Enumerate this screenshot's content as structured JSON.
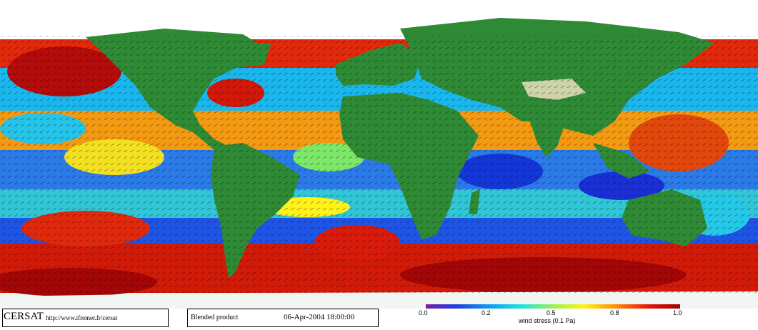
{
  "map": {
    "title": "",
    "date": "06-Apr-2004 18:00:00",
    "product": "Blended product",
    "logo_text": "CERSAT",
    "url": "http://www.ifremer.fr/cersat"
  },
  "colorbar": {
    "label": "wind stress (0.1 Pa)",
    "ticks": [
      "0.0",
      "0.2",
      "0.5",
      "0.8",
      "1.0"
    ],
    "colors": [
      "#7a1fa2",
      "#1d3fe0",
      "#0f9cf0",
      "#22e0e0",
      "#9af05a",
      "#fff21a",
      "#ff8a0a",
      "#e61a0a",
      "#9e0000"
    ]
  },
  "colors": {
    "land": "#2f8a35",
    "ice": "#ffffff",
    "ocean_low": "#1d3fe0",
    "ocean_high": "#c80000"
  }
}
